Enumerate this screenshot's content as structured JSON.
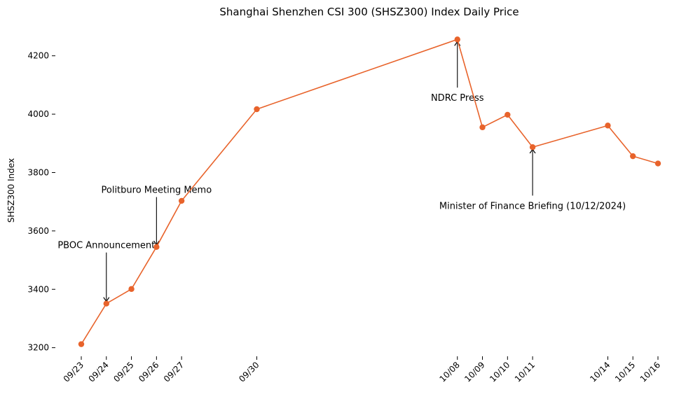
{
  "chart_data": {
    "type": "line",
    "title": "Shanghai Shenzhen CSI 300 (SHSZ300) Index Daily Price",
    "xlabel": "",
    "ylabel": "SHSZ300 Index",
    "ylim": [
      3180,
      4300
    ],
    "yticks": [
      3200,
      3400,
      3600,
      3800,
      4000,
      4200
    ],
    "ytick_labels": [
      "3200",
      "3400",
      "3600",
      "3800",
      "4000",
      "4200"
    ],
    "grid": false,
    "x": [
      "2024-09-23",
      "2024-09-24",
      "2024-09-25",
      "2024-09-26",
      "2024-09-27",
      "2024-09-30",
      "2024-10-08",
      "2024-10-09",
      "2024-10-10",
      "2024-10-11",
      "2024-10-14",
      "2024-10-15",
      "2024-10-16"
    ],
    "xtick_labels": [
      "09/23",
      "09/24",
      "09/25",
      "09/26",
      "09/27",
      "09/30",
      "10/08",
      "10/09",
      "10/10",
      "10/11",
      "10/14",
      "10/15",
      "10/16"
    ],
    "series": [
      {
        "color": "#e8632b",
        "values": [
          3212,
          3351,
          3401,
          3545,
          3703,
          4017,
          4256,
          3955,
          3998,
          3887,
          3961,
          3856,
          3831
        ]
      }
    ],
    "annotations": [
      {
        "text": "PBOC Announcement",
        "point_index": 1,
        "y": 3351,
        "text_y": 3550
      },
      {
        "text": "Politburo Meeting Memo",
        "point_index": 3,
        "y": 3545,
        "text_y": 3740
      },
      {
        "text": "NDRC Press",
        "point_index": 6,
        "y": 4256,
        "text_y": 4055
      },
      {
        "text": "Minister of Finance Briefing (10/12/2024)",
        "point_index": 9,
        "y": 3887,
        "text_y": 3685
      }
    ]
  }
}
